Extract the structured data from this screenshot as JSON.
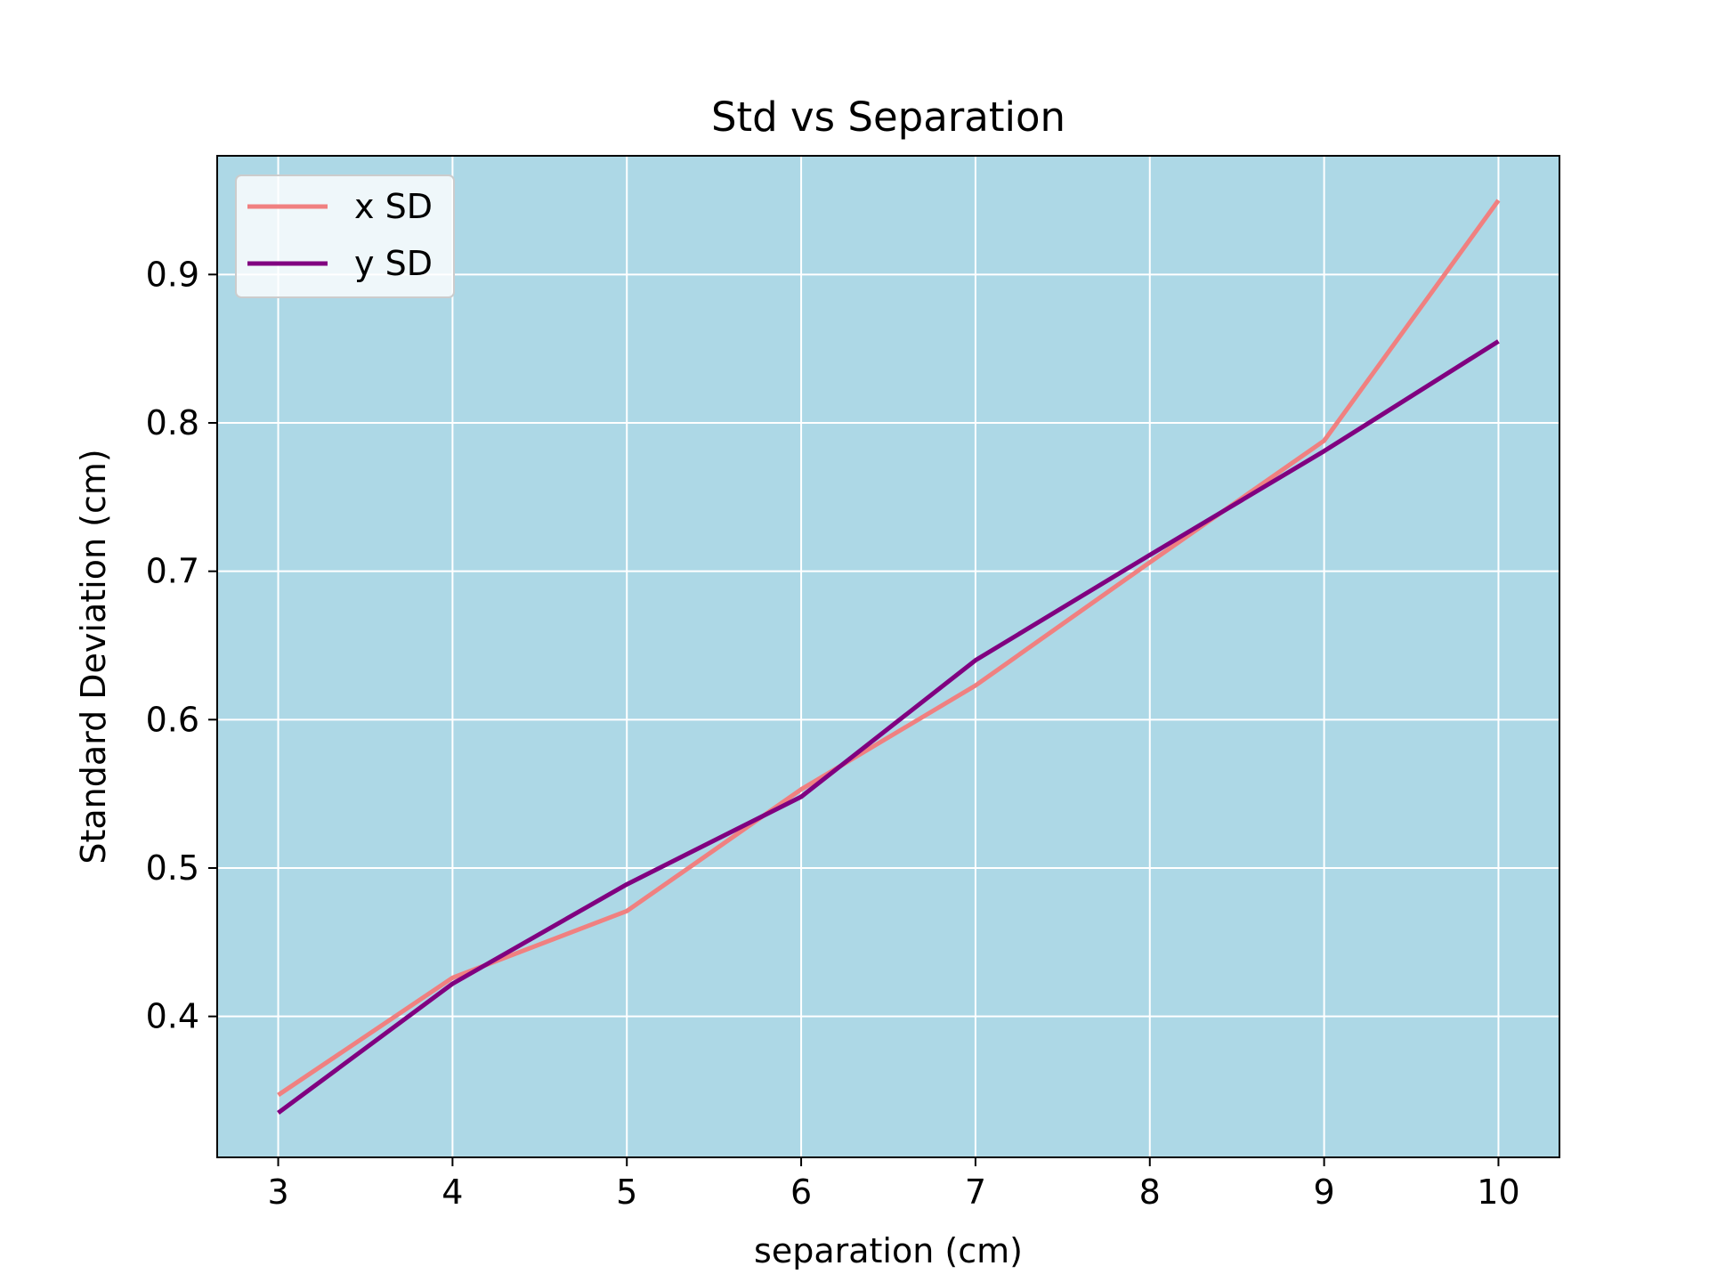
{
  "chart_data": {
    "type": "line",
    "title": "Std vs Separation",
    "xlabel": "separation (cm)",
    "ylabel": "Standard Deviation (cm)",
    "x": [
      3,
      4,
      5,
      6,
      7,
      8,
      9,
      10
    ],
    "series": [
      {
        "name": "x SD",
        "color": "#f08080",
        "values": [
          0.347,
          0.426,
          0.471,
          0.553,
          0.623,
          0.706,
          0.788,
          0.95
        ]
      },
      {
        "name": "y SD",
        "color": "#800080",
        "values": [
          0.335,
          0.422,
          0.489,
          0.548,
          0.64,
          0.711,
          0.781,
          0.855
        ]
      }
    ],
    "xlim": [
      2.65,
      10.35
    ],
    "ylim": [
      0.305,
      0.98
    ],
    "xticks": [
      "3",
      "4",
      "5",
      "6",
      "7",
      "8",
      "9",
      "10"
    ],
    "yticks": [
      "0.4",
      "0.5",
      "0.6",
      "0.7",
      "0.8",
      "0.9"
    ],
    "grid": true,
    "legend_position": "top-left",
    "plot_background": "#add8e6",
    "grid_color": "#ffffff"
  }
}
